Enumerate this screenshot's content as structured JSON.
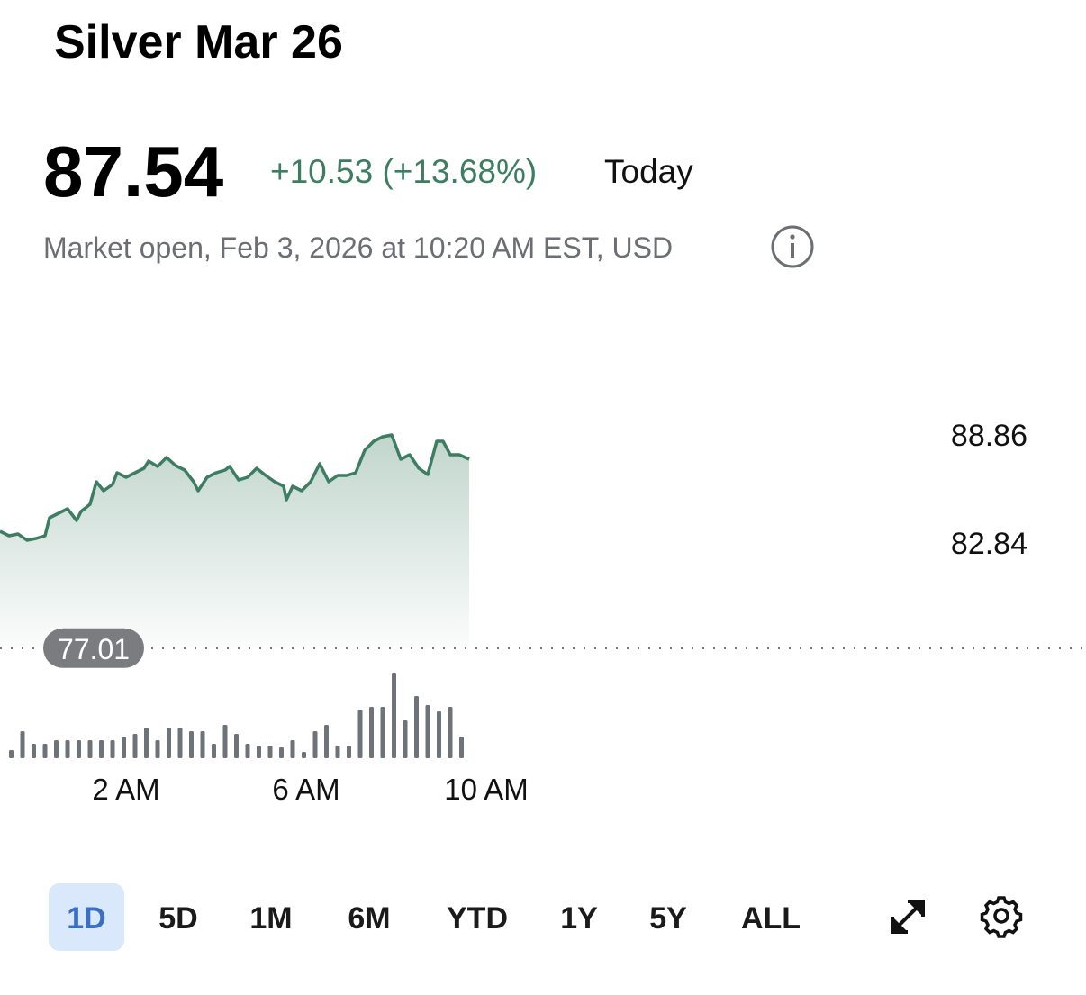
{
  "header": {
    "title": "Silver Mar 26",
    "price": "87.54",
    "change": "+10.53 (+13.68%)",
    "period": "Today",
    "status": "Market open, Feb 3, 2026 at 10:20 AM EST, USD"
  },
  "chart_data": {
    "type": "line",
    "x": [
      -0.8,
      -0.6,
      -0.4,
      -0.2,
      0.0,
      0.2,
      0.3,
      0.5,
      0.7,
      0.9,
      1.0,
      1.2,
      1.34,
      1.5,
      1.7,
      1.8,
      2.0,
      2.2,
      2.4,
      2.5,
      2.7,
      2.9,
      3.1,
      3.3,
      3.5,
      3.6,
      3.8,
      4.0,
      4.2,
      4.3,
      4.5,
      4.7,
      4.9,
      5.1,
      5.3,
      5.5,
      5.56,
      5.7,
      5.9,
      6.1,
      6.3,
      6.5,
      6.7,
      6.9,
      7.1,
      7.3,
      7.5,
      7.7,
      7.9,
      8.1,
      8.3,
      8.5,
      8.7,
      8.9,
      9.04,
      9.2,
      9.4,
      9.62
    ],
    "series": [
      {
        "color": "#3d7d62",
        "values": [
          83.5,
          83.25,
          83.35,
          83.0,
          83.1,
          83.25,
          84.25,
          84.5,
          84.75,
          84.1,
          84.6,
          85.0,
          86.25,
          85.75,
          86.1,
          86.75,
          86.5,
          86.75,
          87.0,
          87.4,
          87.1,
          87.6,
          87.15,
          86.9,
          86.25,
          85.75,
          86.5,
          86.75,
          86.9,
          87.1,
          86.35,
          86.5,
          87.0,
          86.6,
          86.25,
          86.0,
          85.25,
          86.0,
          85.75,
          86.25,
          87.25,
          86.25,
          86.6,
          86.6,
          86.75,
          88.0,
          88.5,
          88.75,
          88.85,
          87.5,
          87.75,
          87.0,
          86.65,
          88.5,
          88.5,
          87.75,
          87.75,
          87.5
        ]
      }
    ],
    "xlim": [
      -0.8,
      10.4
    ],
    "xticks": [
      {
        "value": 2,
        "label": "2 AM"
      },
      {
        "value": 6,
        "label": "6 AM"
      },
      {
        "value": 10,
        "label": "10 AM"
      }
    ],
    "ylim": [
      77,
      91
    ],
    "yticks": [
      88.86,
      82.84
    ],
    "reference_line": 77.01,
    "volume": {
      "color": "#6e7379",
      "ylim": [
        0,
        100
      ],
      "x": [
        -0.55,
        -0.3,
        -0.05,
        0.2,
        0.45,
        0.7,
        0.95,
        1.2,
        1.45,
        1.7,
        1.95,
        2.2,
        2.45,
        2.7,
        2.95,
        3.2,
        3.45,
        3.7,
        3.95,
        4.2,
        4.45,
        4.7,
        4.95,
        5.2,
        5.45,
        5.7,
        5.95,
        6.2,
        6.45,
        6.7,
        6.95,
        7.2,
        7.45,
        7.7,
        7.95,
        8.2,
        8.45,
        8.7,
        8.95,
        9.2,
        9.45
      ],
      "values": [
        9,
        30,
        16,
        16,
        20,
        20,
        20,
        20,
        20,
        20,
        24,
        27,
        34,
        20,
        34,
        34,
        30,
        30,
        16,
        37,
        27,
        16,
        14,
        14,
        12,
        20,
        7,
        30,
        37,
        14,
        14,
        54,
        57,
        57,
        95,
        42,
        69,
        59,
        52,
        57,
        24
      ]
    }
  },
  "ranges": {
    "options": [
      "1D",
      "5D",
      "1M",
      "6M",
      "YTD",
      "1Y",
      "5Y",
      "ALL"
    ],
    "selected": 0
  }
}
